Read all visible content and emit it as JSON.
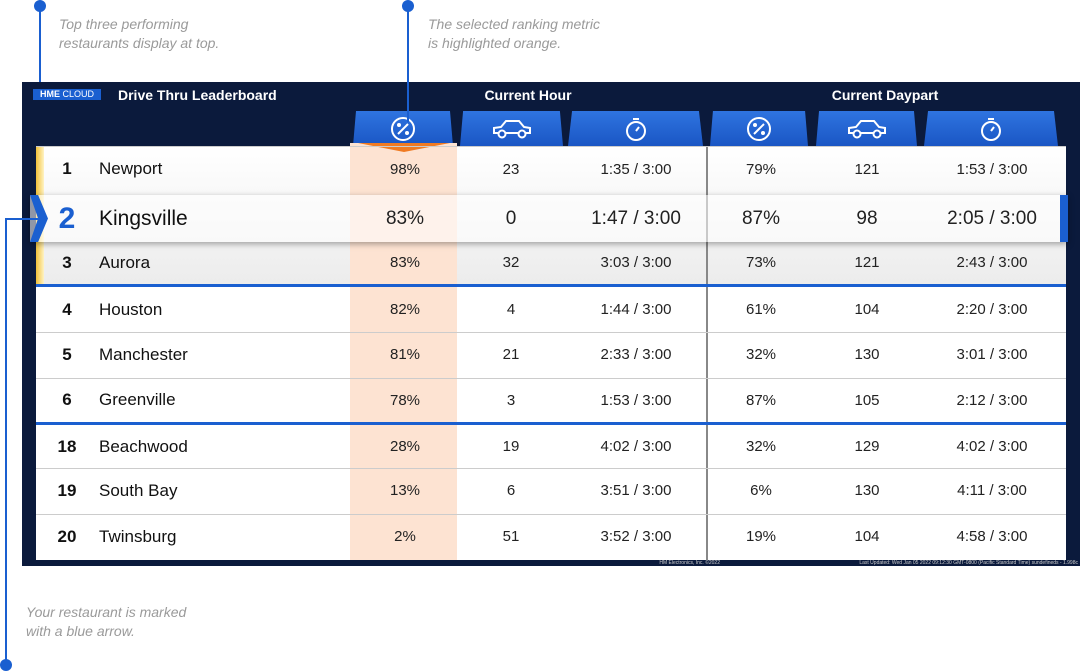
{
  "annotations": [
    {
      "lines": [
        "Top three performing",
        "restaurants display at top."
      ]
    },
    {
      "lines": [
        "The selected ranking metric",
        "is highlighted orange."
      ]
    },
    {
      "lines": [
        "Your restaurant is marked",
        "with a blue arrow."
      ]
    }
  ],
  "header": {
    "logo": {
      "brand": "HME",
      "product": "CLOUD"
    },
    "title": "Drive Thru Leaderboard",
    "groups": [
      "Current Hour",
      "Current Daypart"
    ]
  },
  "rows": [
    {
      "rank": 1,
      "name": "Newport",
      "cells": [
        "98%",
        "23",
        "1:35 / 3:00",
        "79%",
        "121",
        "1:53 / 3:00"
      ]
    },
    {
      "rank": 2,
      "name": "Kingsville",
      "cells": [
        "83%",
        "0",
        "1:47 / 3:00",
        "87%",
        "98",
        "2:05 / 3:00"
      ]
    },
    {
      "rank": 3,
      "name": "Aurora",
      "cells": [
        "83%",
        "32",
        "3:03 / 3:00",
        "73%",
        "121",
        "2:43 / 3:00"
      ]
    },
    {
      "rank": 4,
      "name": "Houston",
      "cells": [
        "82%",
        "4",
        "1:44 / 3:00",
        "61%",
        "104",
        "2:20 / 3:00"
      ]
    },
    {
      "rank": 5,
      "name": "Manchester",
      "cells": [
        "81%",
        "21",
        "2:33 / 3:00",
        "32%",
        "130",
        "3:01 / 3:00"
      ]
    },
    {
      "rank": 6,
      "name": "Greenville",
      "cells": [
        "78%",
        "3",
        "1:53 / 3:00",
        "87%",
        "105",
        "2:12 / 3:00"
      ]
    },
    {
      "rank": 18,
      "name": "Beachwood",
      "cells": [
        "28%",
        "19",
        "4:02 / 3:00",
        "32%",
        "129",
        "4:02 / 3:00"
      ]
    },
    {
      "rank": 19,
      "name": "South Bay",
      "cells": [
        "13%",
        "6",
        "3:51 / 3:00",
        "6%",
        "130",
        "4:11 / 3:00"
      ]
    },
    {
      "rank": 20,
      "name": "Twinsburg",
      "cells": [
        "2%",
        "51",
        "3:52 / 3:00",
        "19%",
        "104",
        "4:58 / 3:00"
      ]
    }
  ],
  "footer": {
    "copyright": "HM Electronics, Inc. ©2022",
    "updated": "Last Updated: Wed Jan 05 2022 09:12:30 GMT-0800 (Pacific Standard Time) sundefineds - 1.998c"
  }
}
